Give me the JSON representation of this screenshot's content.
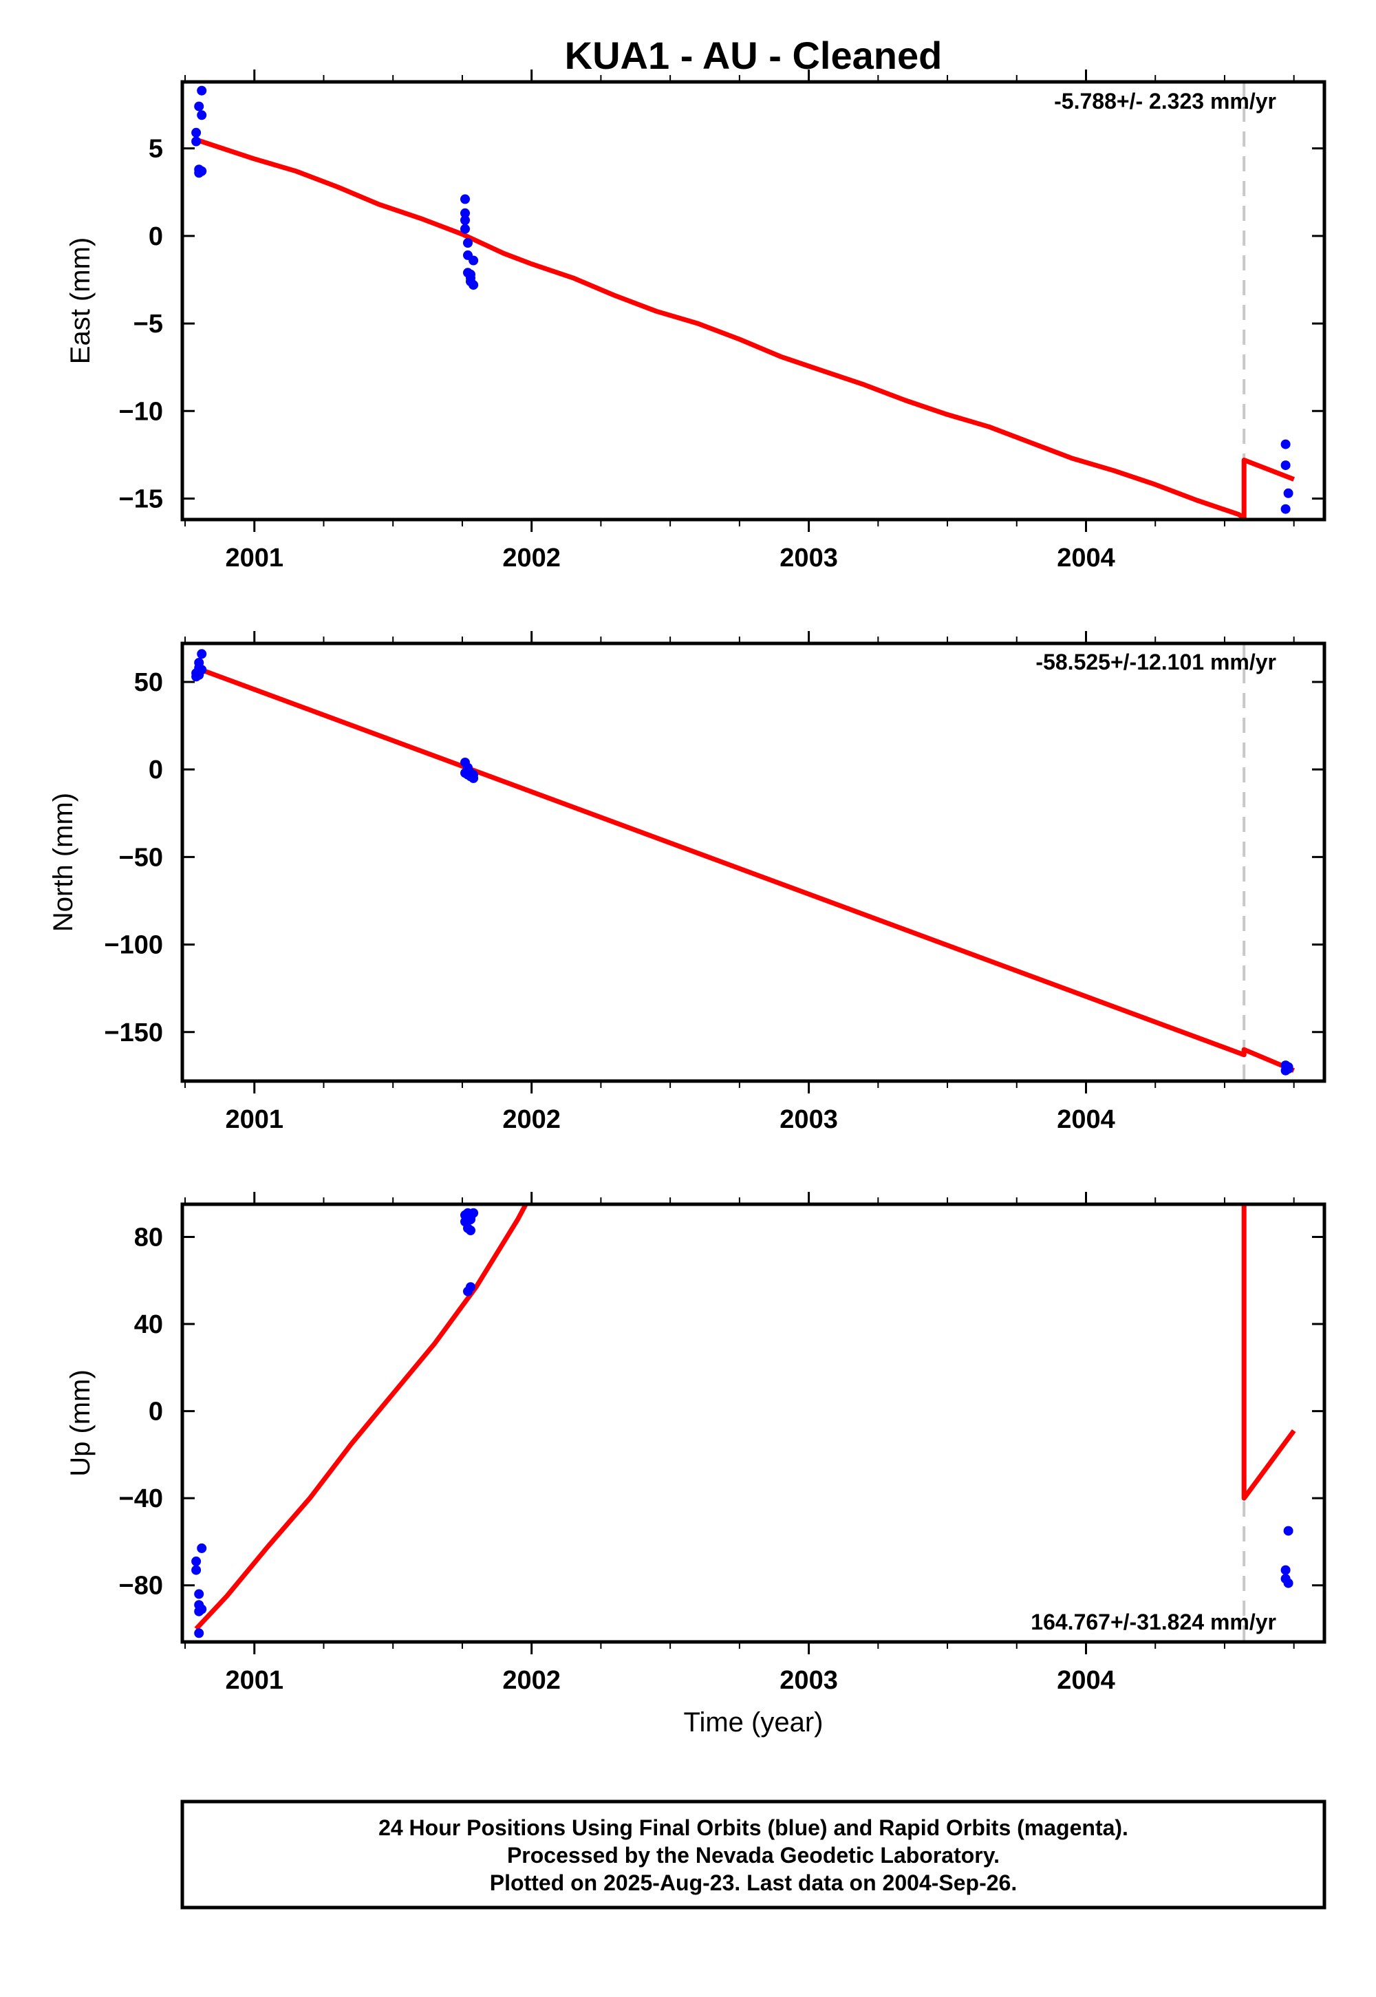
{
  "title": "KUA1  - AU - Cleaned",
  "footer": {
    "line1": "24 Hour Positions Using Final Orbits (blue) and Rapid Orbits (magenta).",
    "line2": "Processed by the Nevada Geodetic Laboratory.",
    "line3": "Plotted on 2025-Aug-23. Last data on 2004-Sep-26."
  },
  "colors": {
    "data": "#0000ff",
    "fit": "#ff0000",
    "break": "#c8c8c8",
    "frame": "#000000"
  },
  "chart_data": [
    {
      "type": "scatter",
      "name": "east",
      "ylabel": "East (mm)",
      "xlabel": "",
      "xlim": [
        2000.74,
        2004.86
      ],
      "ylim": [
        -16.2,
        8.8
      ],
      "xticks": [
        "2001",
        "2002",
        "2003",
        "2004"
      ],
      "yticks": [
        5,
        0,
        -5,
        -10,
        -15
      ],
      "rate_label": "-5.788+/- 2.323 mm/yr",
      "rate_position": "top-right",
      "break_x": 2004.57,
      "points": [
        [
          2000.79,
          5.9
        ],
        [
          2000.79,
          5.4
        ],
        [
          2000.8,
          7.4
        ],
        [
          2000.8,
          3.8
        ],
        [
          2000.8,
          3.6
        ],
        [
          2000.81,
          8.3
        ],
        [
          2000.81,
          6.9
        ],
        [
          2000.81,
          3.7
        ],
        [
          2001.76,
          2.1
        ],
        [
          2001.76,
          1.3
        ],
        [
          2001.76,
          0.9
        ],
        [
          2001.76,
          0.4
        ],
        [
          2001.77,
          -0.4
        ],
        [
          2001.77,
          -1.1
        ],
        [
          2001.77,
          -2.1
        ],
        [
          2001.78,
          -2.4
        ],
        [
          2001.78,
          -2.6
        ],
        [
          2001.79,
          -1.4
        ],
        [
          2001.79,
          -2.8
        ],
        [
          2001.78,
          -2.2
        ],
        [
          2004.72,
          -11.9
        ],
        [
          2004.72,
          -13.1
        ],
        [
          2004.73,
          -14.7
        ],
        [
          2004.72,
          -15.6
        ]
      ],
      "fit": [
        [
          2000.79,
          5.5
        ],
        [
          2001.0,
          4.4
        ],
        [
          2001.15,
          3.7
        ],
        [
          2001.3,
          2.8
        ],
        [
          2001.45,
          1.8
        ],
        [
          2001.6,
          1.0
        ],
        [
          2001.75,
          0.1
        ],
        [
          2001.9,
          -1.0
        ],
        [
          2002.0,
          -1.6
        ],
        [
          2002.15,
          -2.4
        ],
        [
          2002.3,
          -3.4
        ],
        [
          2002.45,
          -4.3
        ],
        [
          2002.6,
          -5.0
        ],
        [
          2002.75,
          -5.9
        ],
        [
          2002.9,
          -6.9
        ],
        [
          2003.05,
          -7.7
        ],
        [
          2003.2,
          -8.5
        ],
        [
          2003.35,
          -9.4
        ],
        [
          2003.5,
          -10.2
        ],
        [
          2003.65,
          -10.9
        ],
        [
          2003.8,
          -11.8
        ],
        [
          2003.95,
          -12.7
        ],
        [
          2004.1,
          -13.4
        ],
        [
          2004.25,
          -14.2
        ],
        [
          2004.4,
          -15.1
        ],
        [
          2004.55,
          -15.9
        ],
        [
          2004.57,
          -16.1
        ],
        [
          2004.57,
          -12.8
        ],
        [
          2004.75,
          -13.9
        ]
      ]
    },
    {
      "type": "scatter",
      "name": "north",
      "ylabel": "North (mm)",
      "xlabel": "",
      "xlim": [
        2000.74,
        2004.86
      ],
      "ylim": [
        -178,
        72
      ],
      "xticks": [
        "2001",
        "2002",
        "2003",
        "2004"
      ],
      "yticks": [
        50,
        0,
        -50,
        -100,
        -150
      ],
      "rate_label": "-58.525+/-12.101 mm/yr",
      "rate_position": "top-right",
      "break_x": 2004.57,
      "points": [
        [
          2000.79,
          53
        ],
        [
          2000.79,
          55
        ],
        [
          2000.8,
          58
        ],
        [
          2000.8,
          61
        ],
        [
          2000.81,
          66
        ],
        [
          2000.81,
          57
        ],
        [
          2000.8,
          54
        ],
        [
          2001.76,
          4
        ],
        [
          2001.76,
          -2
        ],
        [
          2001.77,
          -3
        ],
        [
          2001.77,
          1
        ],
        [
          2001.78,
          -2
        ],
        [
          2001.78,
          -4
        ],
        [
          2001.79,
          -3
        ],
        [
          2001.79,
          -5
        ],
        [
          2001.77,
          0
        ],
        [
          2004.72,
          -169
        ],
        [
          2004.72,
          -172
        ],
        [
          2004.73,
          -170
        ],
        [
          2004.73,
          -171
        ]
      ],
      "fit": [
        [
          2000.79,
          58
        ],
        [
          2004.57,
          -163
        ],
        [
          2004.57,
          -160
        ],
        [
          2004.75,
          -172
        ]
      ]
    },
    {
      "type": "scatter",
      "name": "up",
      "ylabel": "Up (mm)",
      "xlabel": "Time (year)",
      "xlim": [
        2000.74,
        2004.86
      ],
      "ylim": [
        -106,
        95
      ],
      "xticks": [
        "2001",
        "2002",
        "2003",
        "2004"
      ],
      "yticks": [
        80,
        40,
        0,
        -40,
        -80
      ],
      "rate_label": "164.767+/-31.824 mm/yr",
      "rate_position": "bottom-right",
      "break_x": 2004.57,
      "points": [
        [
          2000.79,
          -69
        ],
        [
          2000.79,
          -73
        ],
        [
          2000.8,
          -89
        ],
        [
          2000.8,
          -84
        ],
        [
          2000.8,
          -102
        ],
        [
          2000.81,
          -63
        ],
        [
          2000.81,
          -91
        ],
        [
          2000.8,
          -92
        ],
        [
          2001.76,
          90
        ],
        [
          2001.76,
          87
        ],
        [
          2001.77,
          84
        ],
        [
          2001.77,
          91
        ],
        [
          2001.78,
          88
        ],
        [
          2001.78,
          89
        ],
        [
          2001.79,
          91
        ],
        [
          2001.78,
          83
        ],
        [
          2001.77,
          55
        ],
        [
          2001.78,
          57
        ],
        [
          2004.72,
          -73
        ],
        [
          2004.72,
          -77
        ],
        [
          2004.73,
          -79
        ],
        [
          2004.73,
          -55
        ]
      ],
      "fit": [
        [
          2000.79,
          -100
        ],
        [
          2000.9,
          -85
        ],
        [
          2001.05,
          -62
        ],
        [
          2001.2,
          -40
        ],
        [
          2001.35,
          -15
        ],
        [
          2001.5,
          8
        ],
        [
          2001.65,
          31
        ],
        [
          2001.8,
          57
        ],
        [
          2001.95,
          88
        ],
        [
          2002.0,
          100
        ]
      ],
      "fit2": [
        [
          2004.57,
          100
        ],
        [
          2004.57,
          -40
        ],
        [
          2004.75,
          -9
        ]
      ]
    }
  ]
}
